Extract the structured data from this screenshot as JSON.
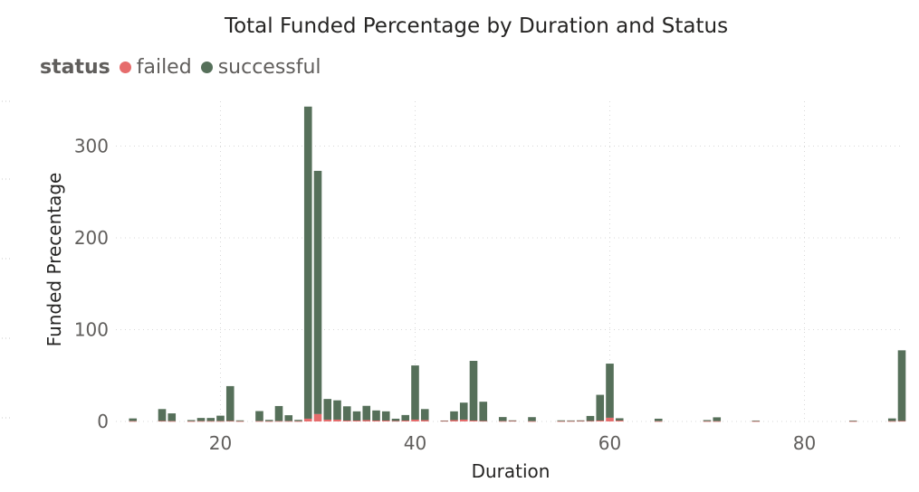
{
  "chart_data": {
    "type": "bar",
    "title": "Total Funded Percentage by Duration and Status",
    "xlabel": "Duration",
    "ylabel": "Funded Precentage",
    "legend_title": "status",
    "legend_position": "top-left",
    "stacked": true,
    "grid": true,
    "xlim": [
      10,
      90
    ],
    "ylim": [
      0,
      340
    ],
    "xticks": [
      20,
      40,
      60,
      80
    ],
    "yticks": [
      0,
      100,
      200,
      300
    ],
    "x": [
      11,
      14,
      15,
      17,
      18,
      19,
      20,
      21,
      22,
      24,
      25,
      26,
      27,
      28,
      29,
      30,
      31,
      32,
      33,
      34,
      35,
      36,
      37,
      38,
      39,
      40,
      41,
      43,
      44,
      45,
      46,
      47,
      49,
      50,
      52,
      55,
      56,
      57,
      58,
      59,
      60,
      61,
      65,
      70,
      71,
      75,
      85,
      89,
      90
    ],
    "series": [
      {
        "name": "failed",
        "color": "#E66C6C",
        "values": [
          0.3,
          0.5,
          0.3,
          0.2,
          0.3,
          0.3,
          0.3,
          0.5,
          0.2,
          0.3,
          0.2,
          0.3,
          0.3,
          0.2,
          3,
          8,
          2,
          2,
          1,
          1,
          1.5,
          1,
          1,
          0.5,
          1,
          2,
          1.5,
          0.5,
          1.5,
          2,
          1,
          0.5,
          0.3,
          0.5,
          0.2,
          0.2,
          0.3,
          0.5,
          0.5,
          1,
          4,
          1,
          0.2,
          0.2,
          0.2,
          0.2,
          0.2,
          0.3,
          0.5
        ]
      },
      {
        "name": "successful",
        "color": "#56705A",
        "values": [
          3,
          13,
          8.5,
          1.3,
          3.5,
          3.5,
          6,
          38,
          1,
          11,
          1.5,
          16.5,
          6.5,
          1.5,
          340,
          265,
          22.5,
          21,
          15.5,
          10,
          15.5,
          11,
          10,
          2.5,
          6,
          59,
          12,
          0.5,
          9.5,
          18.5,
          65,
          21,
          4.5,
          0.7,
          4.5,
          1,
          0.8,
          0.7,
          5.5,
          28,
          59,
          2.5,
          2.8,
          1.3,
          4.3,
          0.8,
          0.8,
          3,
          77
        ]
      }
    ]
  }
}
